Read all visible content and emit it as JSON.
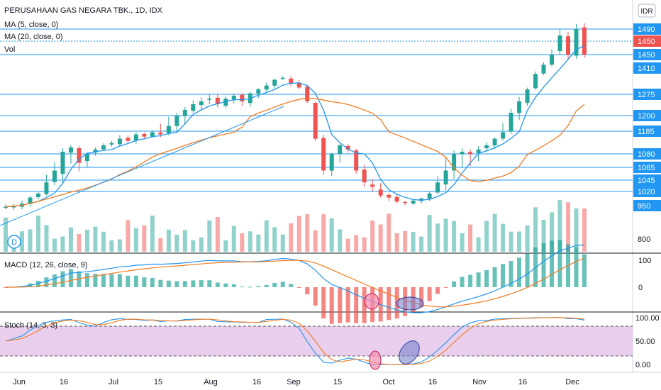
{
  "header": {
    "title": "PERUSAHAAN GAS NEGARA TBK., 1D, IDX",
    "currency": "IDR"
  },
  "legend": {
    "ma5": "MA (5, close, 0)",
    "ma20": "MA (20, close, 0)",
    "vol": "Vol",
    "macd": "MACD (12, 26, close, 9)",
    "stoch": "Stoch (14, 3, 3)",
    "marker": "D"
  },
  "colors": {
    "up": "#26a69a",
    "down": "#ef5350",
    "level_line": "#2196f3",
    "ma5": "#2196f3",
    "ma20": "#f57c1f",
    "stoch_fill": "#e1bee7",
    "pink_circle": "#f48fb1",
    "blue_circle": "#7986cb"
  },
  "chart_data": [
    {
      "type": "candlestick",
      "title": "PERUSAHAAN GAS NEGARA TBK., 1D, IDX",
      "x_ticks": [
        "Jun",
        "16",
        "Jul",
        "15",
        "Aug",
        "16",
        "Sep",
        "15",
        "Oct",
        "16",
        "Nov",
        "16",
        "Dec"
      ],
      "y_ticks": [
        "1490",
        "1450",
        "1450",
        "1410",
        "1275",
        "1200",
        "1185",
        "1080",
        "1065",
        "1045",
        "1020",
        "950",
        "800"
      ],
      "last_price": "1450",
      "horizontal_levels": [
        1490,
        1450,
        1275,
        1200,
        1185,
        1080,
        1065,
        1045,
        1020
      ],
      "approx_close": [
        945,
        950,
        960,
        990,
        1010,
        1040,
        1060,
        1090,
        1110,
        1070,
        1080,
        1100,
        1120,
        1130,
        1150,
        1140,
        1170,
        1160,
        1180,
        1170,
        1190,
        1200,
        1220,
        1240,
        1250,
        1260,
        1240,
        1260,
        1270,
        1250,
        1280,
        1300,
        1320,
        1350,
        1360,
        1330,
        1310,
        1250,
        1150,
        1060,
        1080,
        1120,
        1100,
        1060,
        1040,
        1030,
        1000,
        990,
        970,
        965,
        975,
        985,
        1010,
        1040,
        1060,
        1080,
        1090,
        1080,
        1100,
        1120,
        1150,
        1180,
        1210,
        1250,
        1300,
        1380,
        1420,
        1450,
        1480,
        1450,
        1490,
        1450
      ],
      "series": [
        {
          "name": "MA (5, close, 0)"
        },
        {
          "name": "MA (20, close, 0)"
        },
        {
          "name": "Vol"
        }
      ]
    },
    {
      "type": "line",
      "title": "MACD (12, 26, close, 9)",
      "y_ticks": [
        "100",
        "0"
      ]
    },
    {
      "type": "line",
      "title": "Stoch (14, 3, 3)",
      "y_ticks": [
        "100.00",
        "50.00",
        "0.00"
      ],
      "reference_levels": [
        80,
        20
      ]
    }
  ]
}
